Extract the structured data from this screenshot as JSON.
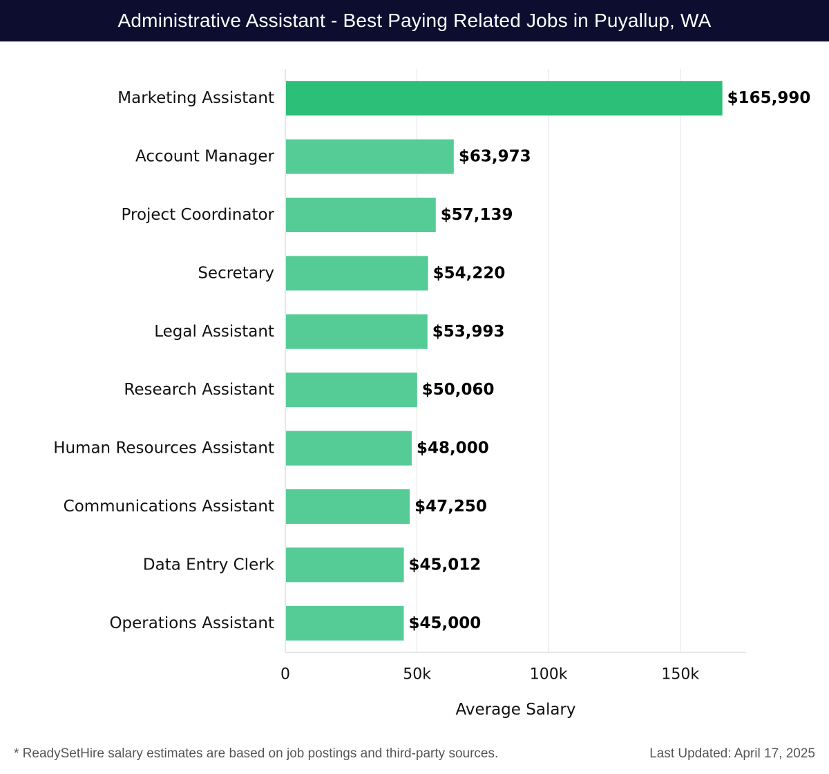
{
  "header": {
    "title": "Administrative Assistant - Best Paying Related Jobs in Puyallup, WA"
  },
  "chart_data": {
    "type": "bar",
    "orientation": "horizontal",
    "title": "Administrative Assistant - Best Paying Related Jobs in Puyallup, WA",
    "xlabel": "Average Salary",
    "ylabel": "",
    "xlim": [
      0,
      175000
    ],
    "xticks": [
      0,
      50000,
      100000,
      150000
    ],
    "xtick_labels": [
      "0",
      "50k",
      "100k",
      "150k"
    ],
    "grid": "vertical",
    "categories": [
      "Marketing Assistant",
      "Account Manager",
      "Project Coordinator",
      "Secretary",
      "Legal Assistant",
      "Research Assistant",
      "Human Resources Assistant",
      "Communications Assistant",
      "Data Entry Clerk",
      "Operations Assistant"
    ],
    "values": [
      165990,
      63973,
      57139,
      54220,
      53993,
      50060,
      48000,
      47250,
      45012,
      45000
    ],
    "value_labels": [
      "$165,990",
      "$63,973",
      "$57,139",
      "$54,220",
      "$53,993",
      "$50,060",
      "$48,000",
      "$47,250",
      "$45,012",
      "$45,000"
    ],
    "colors": {
      "highlight": "#2bbf78",
      "bar": "#55cc96"
    }
  },
  "footer": {
    "note": "* ReadySetHire salary estimates are based on job postings and third-party sources.",
    "updated": "Last Updated: April 17, 2025"
  }
}
